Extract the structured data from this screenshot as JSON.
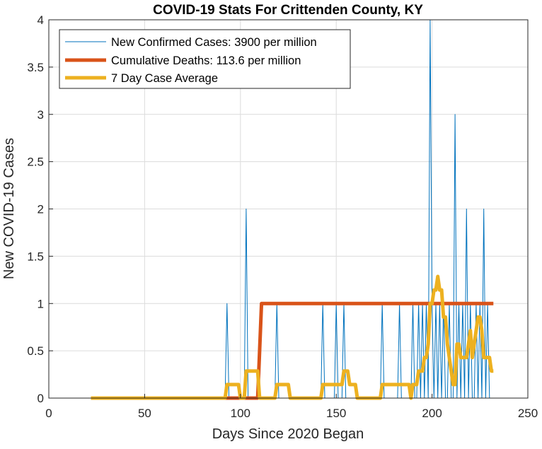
{
  "chart_data": {
    "type": "line",
    "title": "COVID-19 Stats For Crittenden County, KY",
    "xlabel": "Days Since 2020 Began",
    "ylabel": "New COVID-19 Cases",
    "xlim": [
      0,
      250
    ],
    "ylim": [
      0,
      4
    ],
    "xticks": [
      0,
      50,
      100,
      150,
      200,
      250
    ],
    "xtick_labels": [
      "0",
      "50",
      "100",
      "150",
      "200",
      "250"
    ],
    "yticks": [
      0,
      0.5,
      1,
      1.5,
      2,
      2.5,
      3,
      3.5,
      4
    ],
    "ytick_labels": [
      "0",
      "0.5",
      "1",
      "1.5",
      "2",
      "2.5",
      "3",
      "3.5",
      "4"
    ],
    "grid": true,
    "legend_position": "top-left",
    "series": [
      {
        "name": "New Confirmed Cases: 3900 per million",
        "color": "#0072BD",
        "style": "thin",
        "x": [
          22,
          92,
          93,
          94,
          102,
          103,
          104,
          118,
          119,
          120,
          142,
          143,
          144,
          149,
          150,
          151,
          153,
          154,
          155,
          173,
          174,
          175,
          182,
          183,
          184,
          189,
          190,
          191,
          192,
          193,
          194,
          195,
          196,
          197,
          198,
          199,
          200,
          201,
          202,
          203,
          204,
          205,
          206,
          207,
          208,
          209,
          210,
          211,
          212,
          213,
          214,
          215,
          216,
          217,
          218,
          219,
          220,
          221,
          222,
          223,
          224,
          225,
          226,
          227,
          228,
          229,
          230,
          231,
          232
        ],
        "y": [
          0,
          0,
          1,
          0,
          0,
          2,
          0,
          0,
          1,
          0,
          0,
          1,
          0,
          0,
          1,
          0,
          0,
          1,
          0,
          0,
          1,
          0,
          0,
          1,
          0,
          0,
          1,
          0,
          0,
          1,
          0,
          1,
          0,
          1,
          0,
          4,
          1,
          0,
          1,
          0,
          1,
          0,
          1,
          0,
          0,
          1,
          0,
          0,
          3,
          0,
          1,
          0,
          1,
          0,
          2,
          0,
          1,
          0,
          0,
          1,
          0,
          1,
          0,
          2,
          0,
          1,
          0,
          0,
          0
        ]
      },
      {
        "name": "Cumulative Deaths: 113.6 per million",
        "color": "#D95319",
        "style": "thick",
        "x": [
          22,
          109,
          111,
          232
        ],
        "y": [
          0,
          0,
          1,
          1
        ]
      },
      {
        "name": "7 Day Case Average",
        "color": "#EDB120",
        "style": "thick",
        "x": [
          22,
          92,
          93,
          99,
          100,
          102,
          103,
          109,
          110,
          118,
          119,
          125,
          126,
          142,
          143,
          149,
          150,
          153,
          154,
          156,
          157,
          160,
          161,
          173,
          174,
          188,
          189,
          190,
          192,
          193,
          195,
          196,
          197,
          198,
          199,
          200,
          201,
          202,
          203,
          204,
          205,
          206,
          207,
          208,
          209,
          210,
          211,
          212,
          213,
          214,
          215,
          216,
          217,
          218,
          219,
          220,
          221,
          222,
          223,
          224,
          225,
          226,
          227,
          228,
          229,
          230,
          231,
          232
        ],
        "y": [
          0,
          0,
          0.143,
          0.143,
          0,
          0,
          0.286,
          0.286,
          0,
          0,
          0.143,
          0.143,
          0,
          0,
          0.143,
          0.143,
          0.143,
          0.143,
          0.286,
          0.286,
          0.143,
          0.143,
          0,
          0,
          0.143,
          0.143,
          0,
          0.143,
          0.143,
          0.286,
          0.286,
          0.429,
          0.429,
          0.571,
          1.0,
          1.0,
          1.143,
          1.143,
          1.286,
          1.143,
          1.143,
          0.857,
          0.857,
          0.571,
          0.429,
          0.286,
          0.143,
          0.143,
          0.571,
          0.571,
          0.429,
          0.429,
          0.429,
          0.429,
          0.571,
          0.714,
          0.429,
          0.571,
          0.714,
          0.857,
          0.857,
          0.714,
          0.429,
          0.429,
          0.429,
          0.429,
          0.286,
          0.286
        ]
      }
    ]
  }
}
